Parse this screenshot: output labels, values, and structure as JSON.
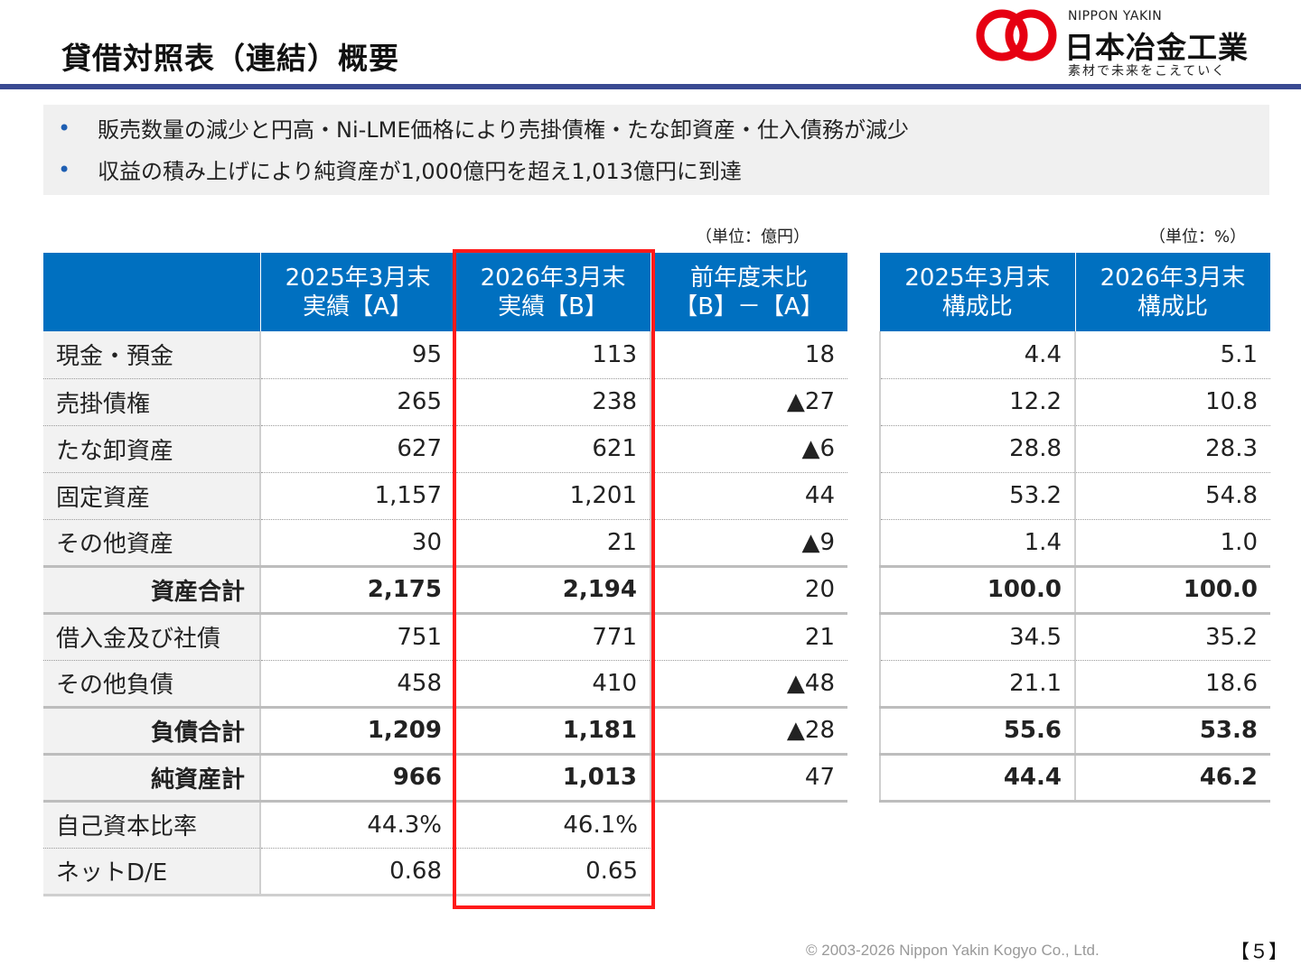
{
  "header": {
    "title": "貸借対照表（連結）概要",
    "logo_en": "NIPPON YAKIN",
    "logo_jp": "日本冶金工業",
    "logo_tagline": "素材で未来をこえていく",
    "accent_color": "#3a4a92",
    "logo_color": "#e60012"
  },
  "summary": {
    "bullets": [
      "販売数量の減少と円高・Ni-LME価格により売掛債権・たな卸資産・仕入債務が減少",
      "収益の積み上げにより純資産が1,000億円を超え1,013億円に到達"
    ]
  },
  "left_table": {
    "unit": "（単位：億円）",
    "header_color": "#0070c0",
    "columns": [
      {
        "line1": "2025年3月末",
        "line2": "実績【A】"
      },
      {
        "line1": "2026年3月末",
        "line2": "実績【B】"
      },
      {
        "line1": "前年度末比",
        "line2": "【B】－【A】"
      }
    ],
    "rows": [
      {
        "label": "現金・預金",
        "a": "95",
        "b": "113",
        "diff": "18"
      },
      {
        "label": "売掛債権",
        "a": "265",
        "b": "238",
        "diff": "▲27"
      },
      {
        "label": "たな卸資産",
        "a": "627",
        "b": "621",
        "diff": "▲6"
      },
      {
        "label": "固定資産",
        "a": "1,157",
        "b": "1,201",
        "diff": "44"
      },
      {
        "label": "その他資産",
        "a": "30",
        "b": "21",
        "diff": "▲9"
      },
      {
        "label": "資産合計",
        "a": "2,175",
        "b": "2,194",
        "diff": "20"
      },
      {
        "label": "借入金及び社債",
        "a": "751",
        "b": "771",
        "diff": "21"
      },
      {
        "label": "その他負債",
        "a": "458",
        "b": "410",
        "diff": "▲48"
      },
      {
        "label": "負債合計",
        "a": "1,209",
        "b": "1,181",
        "diff": "▲28"
      },
      {
        "label": "純資産計",
        "a": "966",
        "b": "1,013",
        "diff": "47"
      },
      {
        "label": "自己資本比率",
        "a": "44.3%",
        "b": "46.1%",
        "diff": ""
      },
      {
        "label": "ネットD/E",
        "a": "0.68",
        "b": "0.65",
        "diff": ""
      }
    ]
  },
  "right_table": {
    "unit": "（単位：%）",
    "columns": [
      {
        "line1": "2025年3月末",
        "line2": "構成比"
      },
      {
        "line1": "2026年3月末",
        "line2": "構成比"
      }
    ],
    "rows": [
      {
        "a": "4.4",
        "b": "5.1"
      },
      {
        "a": "12.2",
        "b": "10.8"
      },
      {
        "a": "28.8",
        "b": "28.3"
      },
      {
        "a": "53.2",
        "b": "54.8"
      },
      {
        "a": "1.4",
        "b": "1.0"
      },
      {
        "a": "100.0",
        "b": "100.0"
      },
      {
        "a": "34.5",
        "b": "35.2"
      },
      {
        "a": "21.1",
        "b": "18.6"
      },
      {
        "a": "55.6",
        "b": "53.8"
      },
      {
        "a": "44.4",
        "b": "46.2"
      }
    ]
  },
  "footer": {
    "copyright": "© 2003-2026 Nippon Yakin Kogyo Co., Ltd.",
    "page": "【５】"
  }
}
